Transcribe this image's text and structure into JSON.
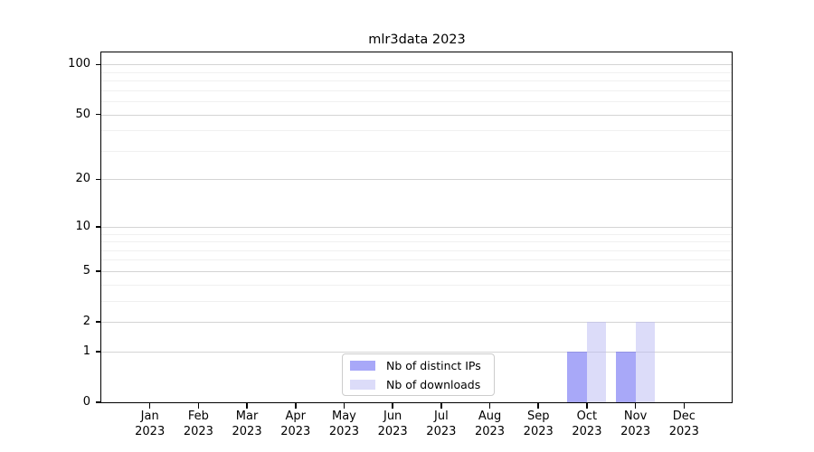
{
  "chart_data": {
    "type": "bar",
    "title": "mlr3data 2023",
    "categories": [
      "Jan",
      "Feb",
      "Mar",
      "Apr",
      "May",
      "Jun",
      "Jul",
      "Aug",
      "Sep",
      "Oct",
      "Nov",
      "Dec"
    ],
    "year": "2023",
    "series": [
      {
        "name": "Nb of distinct IPs",
        "color": "rgba(82,82,242,0.5)",
        "values": [
          0,
          0,
          0,
          0,
          0,
          0,
          0,
          0,
          0,
          1,
          1,
          0
        ]
      },
      {
        "name": "Nb of downloads",
        "color": "rgba(185,185,243,0.5)",
        "values": [
          0,
          0,
          0,
          0,
          0,
          0,
          0,
          0,
          0,
          2,
          2,
          0
        ]
      }
    ],
    "yscale": "log1p",
    "ylim": [
      0,
      118
    ],
    "yticks": [
      0,
      1,
      2,
      5,
      10,
      20,
      50,
      100
    ],
    "minor_gridlines": [
      3,
      4,
      6,
      7,
      8,
      9,
      30,
      40,
      60,
      70,
      80,
      90
    ],
    "grid": {
      "major_color": "#d4d4d4",
      "minor_color": "#f0f0f0"
    },
    "axis_color": "#000000",
    "legend": {
      "position": "lower center",
      "border_color": "#cccccc",
      "background": "#ffffff"
    }
  }
}
